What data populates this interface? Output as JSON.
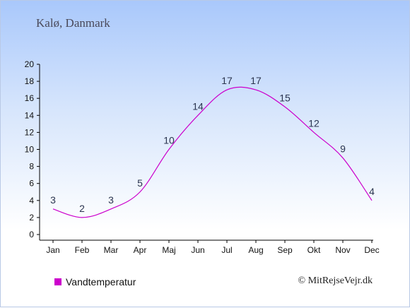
{
  "header": {
    "place": "Kalø, Danmark"
  },
  "legend": {
    "label": "Vandtemperatur",
    "color": "#cc00cc"
  },
  "footer": {
    "copyright": "© MitRejseVejr.dk"
  },
  "chart_data": {
    "type": "line",
    "categories": [
      "Jan",
      "Feb",
      "Mar",
      "Apr",
      "Maj",
      "Jun",
      "Jul",
      "Aug",
      "Sep",
      "Okt",
      "Nov",
      "Dec"
    ],
    "series": [
      {
        "name": "Vandtemperatur",
        "color": "#cc00cc",
        "values": [
          3,
          2,
          3,
          5,
          10,
          14,
          17,
          17,
          15,
          12,
          9,
          4
        ]
      }
    ],
    "ylim": [
      0,
      20
    ],
    "yticks": [
      0,
      2,
      4,
      6,
      8,
      10,
      12,
      14,
      16,
      18,
      20
    ],
    "grid": false,
    "legend_position": "bottom-left"
  }
}
